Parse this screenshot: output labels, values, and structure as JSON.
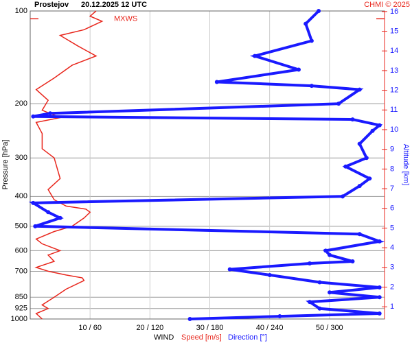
{
  "chart_data": {
    "type": "profile",
    "title": "Prostejov",
    "subtitle": "20.12.2025 12 UTC",
    "credit": "CHMI © 2025",
    "x_label": "WIND",
    "y_label": "Pressure [hPa]",
    "y2_label": "Altitude [km]",
    "log_y": true,
    "grid": true,
    "xlim": [
      0,
      59.2
    ],
    "xticks": [
      {
        "value": 10,
        "label": "10 / 60"
      },
      {
        "value": 20,
        "label": "20 / 120"
      },
      {
        "value": 30,
        "label": "30 / 180"
      },
      {
        "value": 40,
        "label": "40 / 240"
      },
      {
        "value": 50,
        "label": "50 / 300"
      }
    ],
    "ylim": [
      1000,
      100
    ],
    "yticks": [
      100,
      200,
      300,
      400,
      500,
      600,
      700,
      850,
      925,
      1000
    ],
    "y2lim": [
      0.38,
      16.03
    ],
    "y2ticks": [
      1,
      2,
      3,
      4,
      5,
      6,
      7,
      8,
      9,
      10,
      11,
      12,
      13,
      14,
      15,
      16
    ],
    "annotation": {
      "text": "MXWS",
      "pressure": 106
    },
    "series": [
      {
        "name": "Speed [m/s]",
        "color": "#e8261c",
        "pressure": [
          1000,
          960,
          925,
          900,
          850,
          800,
          750,
          735,
          720,
          700,
          680,
          650,
          620,
          600,
          570,
          550,
          520,
          500,
          470,
          450,
          440,
          430,
          410,
          380,
          350,
          300,
          280,
          250,
          230,
          222,
          210,
          195,
          180,
          165,
          150,
          140,
          130,
          120,
          115,
          108,
          104,
          100
        ],
        "values": [
          2,
          1,
          3,
          2,
          4,
          6,
          9,
          8.7,
          6,
          3,
          1,
          4,
          3,
          5,
          2,
          1,
          4,
          7,
          9,
          10,
          9.3,
          6,
          4,
          3,
          5,
          4,
          2,
          2,
          1,
          5,
          2,
          3,
          1,
          4,
          7,
          11,
          8,
          5,
          9,
          12,
          10,
          11
        ]
      },
      {
        "name": "Direction [°]",
        "color": "#1a1aff",
        "xlim": [
          0,
          355
        ],
        "pressure": [
          1000,
          980,
          960,
          925,
          880,
          850,
          820,
          790,
          760,
          720,
          690,
          660,
          650,
          620,
          600,
          560,
          530,
          500,
          470,
          450,
          420,
          400,
          370,
          350,
          320,
          300,
          270,
          245,
          235,
          225,
          220,
          215,
          200,
          180,
          175,
          170,
          155,
          140,
          125,
          110,
          100
        ],
        "values": [
          160,
          250,
          350,
          290,
          280,
          350,
          300,
          350,
          290,
          240,
          200,
          280,
          323,
          300,
          296,
          350,
          330,
          5,
          30,
          18,
          3,
          313,
          330,
          340,
          316,
          337,
          330,
          343,
          350,
          323,
          3,
          20,
          309,
          330,
          282,
          187,
          269,
          225,
          282,
          276,
          289
        ]
      }
    ]
  }
}
